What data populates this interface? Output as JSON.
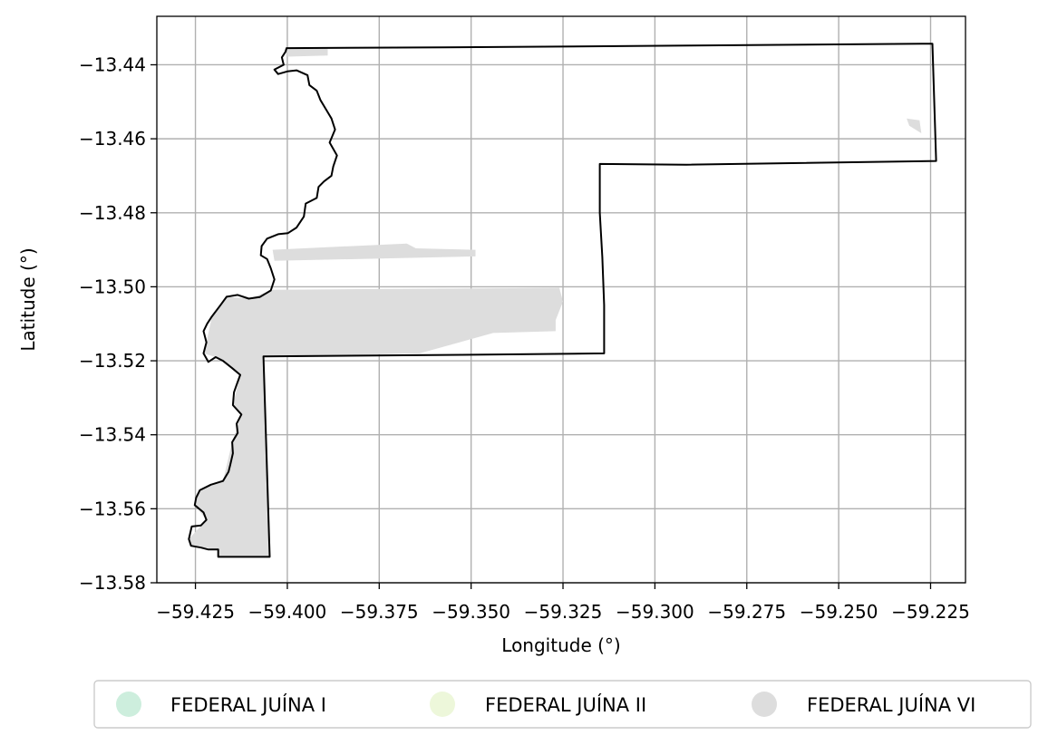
{
  "chart_data": {
    "type": "map",
    "xlabel": "Longitude (°)",
    "ylabel": "Latitude (°)",
    "xlim": [
      -59.4355,
      -59.2155
    ],
    "ylim": [
      -13.58,
      -13.4269
    ],
    "xticks": [
      -59.425,
      -59.4,
      -59.375,
      -59.35,
      -59.325,
      -59.3,
      -59.275,
      -59.25,
      -59.225
    ],
    "xtick_labels": [
      "−59.425",
      "−59.400",
      "−59.375",
      "−59.350",
      "−59.325",
      "−59.300",
      "−59.275",
      "−59.250",
      "−59.225"
    ],
    "yticks": [
      -13.44,
      -13.46,
      -13.48,
      -13.5,
      -13.52,
      -13.54,
      -13.56,
      -13.58
    ],
    "ytick_labels": [
      "−13.44",
      "−13.46",
      "−13.48",
      "−13.50",
      "−13.52",
      "−13.54",
      "−13.56",
      "−13.58"
    ],
    "grid": true,
    "legend_position": "bottom",
    "legend": [
      {
        "label": "FEDERAL JUÍNA I",
        "color": "#cdeedd"
      },
      {
        "label": "FEDERAL JUÍNA II",
        "color": "#edf7da"
      },
      {
        "label": "FEDERAL JUÍNA VI",
        "color": "#dddddd"
      }
    ],
    "boundary_color": "#000000",
    "boundary": [
      [
        -59.4002,
        -13.4355
      ],
      [
        -59.3575,
        -13.4353
      ],
      [
        -59.2905,
        -13.4348
      ],
      [
        -59.2245,
        -13.4343
      ],
      [
        -59.2235,
        -13.466
      ],
      [
        -59.2915,
        -13.467
      ],
      [
        -59.315,
        -13.4668
      ],
      [
        -59.315,
        -13.48
      ],
      [
        -59.3143,
        -13.492
      ],
      [
        -59.3138,
        -13.505
      ],
      [
        -59.3138,
        -13.518
      ],
      [
        -59.3525,
        -13.5184
      ],
      [
        -59.4065,
        -13.5188
      ],
      [
        -59.4048,
        -13.573
      ],
      [
        -59.4188,
        -13.573
      ],
      [
        -59.4188,
        -13.571
      ],
      [
        -59.4215,
        -13.571
      ],
      [
        -59.4235,
        -13.5705
      ],
      [
        -59.4262,
        -13.57
      ],
      [
        -59.4268,
        -13.5682
      ],
      [
        -59.426,
        -13.5648
      ],
      [
        -59.4235,
        -13.5645
      ],
      [
        -59.422,
        -13.563
      ],
      [
        -59.4228,
        -13.561
      ],
      [
        -59.4252,
        -13.559
      ],
      [
        -59.4248,
        -13.557
      ],
      [
        -59.4238,
        -13.555
      ],
      [
        -59.4208,
        -13.5535
      ],
      [
        -59.4175,
        -13.5525
      ],
      [
        -59.416,
        -13.55
      ],
      [
        -59.4155,
        -13.548
      ],
      [
        -59.4148,
        -13.545
      ],
      [
        -59.415,
        -13.542
      ],
      [
        -59.4135,
        -13.5395
      ],
      [
        -59.4138,
        -13.537
      ],
      [
        -59.4125,
        -13.5345
      ],
      [
        -59.4148,
        -13.532
      ],
      [
        -59.4145,
        -13.5285
      ],
      [
        -59.4138,
        -13.5265
      ],
      [
        -59.4128,
        -13.5238
      ],
      [
        -59.415,
        -13.522
      ],
      [
        -59.4175,
        -13.52
      ],
      [
        -59.4195,
        -13.519
      ],
      [
        -59.4215,
        -13.5203
      ],
      [
        -59.4228,
        -13.518
      ],
      [
        -59.422,
        -13.515
      ],
      [
        -59.4228,
        -13.512
      ],
      [
        -59.4218,
        -13.51
      ],
      [
        -59.4205,
        -13.508
      ],
      [
        -59.4182,
        -13.505
      ],
      [
        -59.4165,
        -13.5027
      ],
      [
        -59.4135,
        -13.5022
      ],
      [
        -59.4105,
        -13.5032
      ],
      [
        -59.4075,
        -13.5028
      ],
      [
        -59.4045,
        -13.501
      ],
      [
        -59.4035,
        -13.498
      ],
      [
        -59.4045,
        -13.495
      ],
      [
        -59.4055,
        -13.4925
      ],
      [
        -59.4072,
        -13.4915
      ],
      [
        -59.407,
        -13.489
      ],
      [
        -59.4055,
        -13.487
      ],
      [
        -59.4025,
        -13.4858
      ],
      [
        -59.3998,
        -13.4855
      ],
      [
        -59.3975,
        -13.484
      ],
      [
        -59.3955,
        -13.481
      ],
      [
        -59.395,
        -13.4775
      ],
      [
        -59.392,
        -13.476
      ],
      [
        -59.3915,
        -13.473
      ],
      [
        -59.39,
        -13.4715
      ],
      [
        -59.388,
        -13.47
      ],
      [
        -59.3875,
        -13.4675
      ],
      [
        -59.3865,
        -13.4645
      ],
      [
        -59.3885,
        -13.461
      ],
      [
        -59.387,
        -13.4575
      ],
      [
        -59.388,
        -13.4545
      ],
      [
        -59.3895,
        -13.452
      ],
      [
        -59.391,
        -13.4495
      ],
      [
        -59.392,
        -13.447
      ],
      [
        -59.394,
        -13.4455
      ],
      [
        -59.3945,
        -13.4428
      ],
      [
        -59.3975,
        -13.4415
      ],
      [
        -59.4,
        -13.4418
      ],
      [
        -59.4025,
        -13.4425
      ],
      [
        -59.4035,
        -13.4413
      ],
      [
        -59.401,
        -13.44
      ],
      [
        -59.4015,
        -13.438
      ],
      [
        -59.4005,
        -13.4365
      ],
      [
        -59.4002,
        -13.4355
      ]
    ],
    "shaded_regions_color": "#dddddd",
    "shaded_regions": [
      [
        [
          -59.4,
          -13.4357
        ],
        [
          -59.389,
          -13.4357
        ],
        [
          -59.389,
          -13.4375
        ],
        [
          -59.4,
          -13.4378
        ]
      ],
      [
        [
          -59.2315,
          -13.4545
        ],
        [
          -59.228,
          -13.455
        ],
        [
          -59.2275,
          -13.4585
        ],
        [
          -59.2308,
          -13.4565
        ]
      ],
      [
        [
          -59.404,
          -13.49
        ],
        [
          -59.3675,
          -13.4883
        ],
        [
          -59.365,
          -13.4896
        ],
        [
          -59.3488,
          -13.49
        ],
        [
          -59.3488,
          -13.4918
        ],
        [
          -59.4035,
          -13.493
        ]
      ],
      [
        [
          -59.404,
          -13.5008
        ],
        [
          -59.326,
          -13.5003
        ],
        [
          -59.325,
          -13.504
        ],
        [
          -59.327,
          -13.509
        ],
        [
          -59.327,
          -13.512
        ],
        [
          -59.344,
          -13.5125
        ],
        [
          -59.364,
          -13.518
        ],
        [
          -59.406,
          -13.519
        ],
        [
          -59.4065,
          -13.5188
        ],
        [
          -59.4048,
          -13.573
        ],
        [
          -59.4188,
          -13.573
        ],
        [
          -59.4188,
          -13.571
        ],
        [
          -59.4262,
          -13.57
        ],
        [
          -59.4268,
          -13.5682
        ],
        [
          -59.422,
          -13.563
        ],
        [
          -59.4252,
          -13.559
        ],
        [
          -59.4238,
          -13.555
        ],
        [
          -59.4175,
          -13.5525
        ],
        [
          -59.415,
          -13.542
        ],
        [
          -59.4125,
          -13.5345
        ],
        [
          -59.4148,
          -13.532
        ],
        [
          -59.4128,
          -13.5238
        ],
        [
          -59.4195,
          -13.519
        ],
        [
          -59.4228,
          -13.518
        ],
        [
          -59.422,
          -13.515
        ],
        [
          -59.4205,
          -13.508
        ],
        [
          -59.4165,
          -13.5027
        ],
        [
          -59.4105,
          -13.5032
        ],
        [
          -59.4045,
          -13.501
        ]
      ]
    ]
  }
}
